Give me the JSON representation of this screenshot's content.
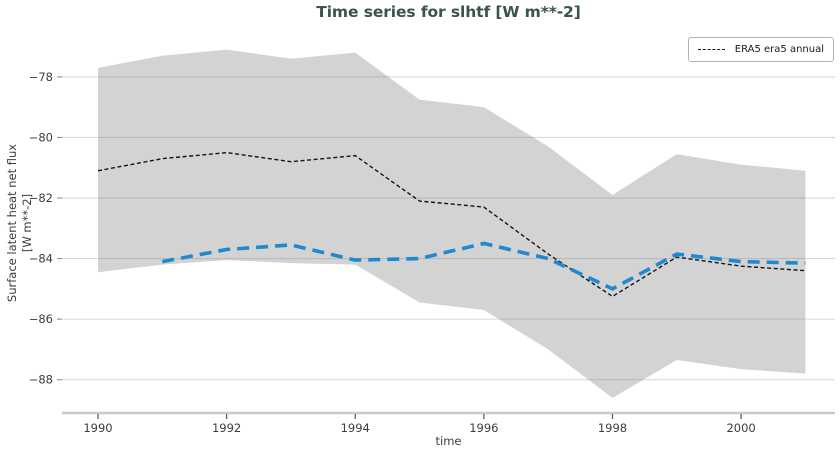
{
  "chart_data": {
    "type": "line",
    "title": "Time series for slhtf [W m**-2]",
    "xlabel": "time",
    "ylabel": "Surface latent heat net flux [W m**-2]",
    "ylabel_lines": [
      "Surface latent heat net flux",
      "[W m**-2]"
    ],
    "x": [
      1990,
      1991,
      1992,
      1993,
      1994,
      1995,
      1996,
      1997,
      1998,
      1999,
      2000,
      2001
    ],
    "series": [
      {
        "name": "ERA5 era5 annual",
        "style": "thin-dashed",
        "color": "#141414",
        "values": [
          -81.1,
          -80.7,
          -80.5,
          -80.8,
          -80.6,
          -82.1,
          -82.3,
          -83.85,
          -85.25,
          -83.95,
          -84.25,
          -84.4
        ]
      },
      {
        "name": "",
        "style": "thick-dashed",
        "color": "#2088d0",
        "values": [
          null,
          -84.1,
          -83.7,
          -83.55,
          -84.05,
          -84.0,
          -83.5,
          -84.0,
          -85.0,
          -83.85,
          -84.1,
          -84.15
        ]
      }
    ],
    "band": {
      "color": "#d3d3d3",
      "upper": [
        -77.7,
        -77.3,
        -77.1,
        -77.4,
        -77.2,
        -78.75,
        -79.0,
        -80.3,
        -81.9,
        -80.55,
        -80.9,
        -81.1
      ],
      "lower": [
        -84.45,
        -84.2,
        -84.05,
        -84.15,
        -84.2,
        -85.45,
        -85.7,
        -87.0,
        -88.6,
        -87.35,
        -87.65,
        -87.8
      ]
    },
    "xticks": [
      1990,
      1992,
      1994,
      1996,
      1998,
      2000
    ],
    "yticks": [
      -78,
      -80,
      -82,
      -84,
      -86,
      -88
    ],
    "xlim": [
      1989.44,
      2001.46
    ],
    "ylim": [
      -89.1,
      -76.55
    ],
    "grid": "horizontal",
    "legend": {
      "position": "upper right",
      "entries": [
        {
          "label": "ERA5 era5 annual",
          "color": "#141414",
          "style": "thin-dashed"
        }
      ]
    }
  },
  "colors": {
    "title": "#3a534e",
    "tick_labels": "#3d3d3d",
    "gridline": "#808080",
    "axis_line": "#cbcbcb",
    "band": "#d3d3d3",
    "era5_line": "#141414",
    "blue_line": "#2088d0",
    "legend_border": "#b3b3b3"
  }
}
